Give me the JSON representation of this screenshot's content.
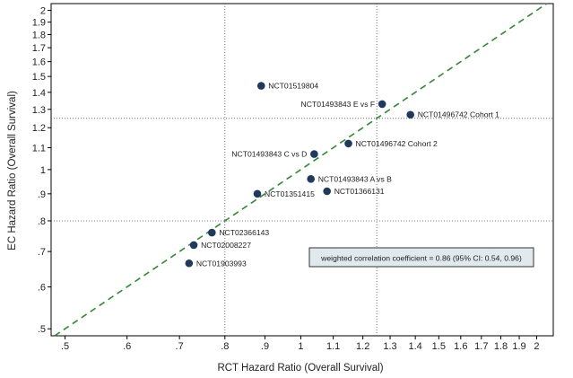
{
  "chart_data": {
    "type": "scatter",
    "title": "",
    "xlabel": "RCT Hazard Ratio (Overall Survival)",
    "ylabel": "EC Hazard Ratio (Overall Survival)",
    "x_scale": "log",
    "y_scale": "log",
    "xlim": [
      0.48,
      2.1
    ],
    "ylim": [
      0.485,
      2.06
    ],
    "x_ticks": [
      0.5,
      0.6,
      0.7,
      0.8,
      0.9,
      1.0,
      1.1,
      1.2,
      1.3,
      1.4,
      1.5,
      1.6,
      1.7,
      1.8,
      1.9,
      2.0
    ],
    "x_tick_labels": [
      ".5",
      ".6",
      ".7",
      ".8",
      ".9",
      "1",
      "1.1",
      "1.2",
      "1.3",
      "1.4",
      "1.5",
      "1.6",
      "1.7",
      "1.8",
      "1.9",
      "2"
    ],
    "y_ticks": [
      0.5,
      0.6,
      0.7,
      0.8,
      0.9,
      1.0,
      1.1,
      1.2,
      1.3,
      1.4,
      1.5,
      1.6,
      1.7,
      1.8,
      1.9,
      2.0
    ],
    "y_tick_labels": [
      ".5",
      ".6",
      ".7",
      ".8",
      ".9",
      "1",
      "1.1",
      "1.2",
      "1.3",
      "1.4",
      "1.5",
      "1.6",
      "1.7",
      "1.8",
      "1.9",
      "2"
    ],
    "reference_lines": {
      "vertical": [
        0.8,
        1.25
      ],
      "horizontal": [
        0.8,
        1.25
      ]
    },
    "identity_line": true,
    "points": [
      {
        "label": "NCT01519804",
        "x": 0.89,
        "y": 1.44,
        "label_pos": "right"
      },
      {
        "label": "NCT01493843 E vs F",
        "x": 1.27,
        "y": 1.33,
        "label_pos": "left"
      },
      {
        "label": "NCT01496742 Cohort 1",
        "x": 1.38,
        "y": 1.27,
        "label_pos": "right"
      },
      {
        "label": "NCT01496742 Cohort 2",
        "x": 1.15,
        "y": 1.12,
        "label_pos": "right"
      },
      {
        "label": "NCT01493843 C vs D",
        "x": 1.04,
        "y": 1.07,
        "label_pos": "left"
      },
      {
        "label": "NCT01493843 A vs B",
        "x": 1.03,
        "y": 0.96,
        "label_pos": "right"
      },
      {
        "label": "NCT01366131",
        "x": 1.08,
        "y": 0.91,
        "label_pos": "right"
      },
      {
        "label": "NCT01351415",
        "x": 0.88,
        "y": 0.9,
        "label_pos": "right"
      },
      {
        "label": "NCT02366143",
        "x": 0.77,
        "y": 0.76,
        "label_pos": "right"
      },
      {
        "label": "NCT02008227",
        "x": 0.73,
        "y": 0.72,
        "label_pos": "right"
      },
      {
        "label": "NCT01903993",
        "x": 0.72,
        "y": 0.665,
        "label_pos": "right"
      }
    ],
    "annotation": "weighted correlation coefficient = 0.86 (95% CI: 0.54, 0.96)",
    "colors": {
      "point": "#1f3a5f",
      "identity_line": "#2e8b2e",
      "annotation_fill": "#dfe9ee"
    },
    "grid": false
  }
}
